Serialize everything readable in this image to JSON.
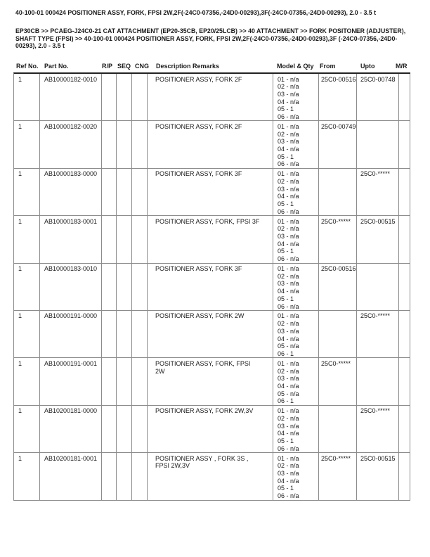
{
  "page": {
    "title": "40-100-01 000424 POSITIONER ASSY, FORK, FPSI 2W,2F(-24C0-07356,-24D0-00293),3F(-24C0-07356,-24D0-00293), 2.0 - 3.5 t",
    "breadcrumb": "EP30CB >> PCAEG-J24C0-21 CAT ATTACHMENT (EP20-35CB, EP20/25LCB) >> 40 ATTACHMENT >> FORK POSITONER (ADJUSTER), SHAFT TYPE (FPSI) >> 40-100-01 000424 POSITIONER ASSY, FORK, FPSI 2W,2F(-24C0-07356,-24D0-00293),3F (-24C0-07356,-24D0-00293), 2.0 - 3.5 t"
  },
  "colors": {
    "text": "#1a1a1a",
    "grid_line": "#8c8c8c",
    "header_rule": "#222222",
    "background": "#ffffff"
  },
  "table": {
    "headers": {
      "ref": "Ref No.",
      "part": "Part No.",
      "rp": "R/P",
      "seq": "SEQ",
      "cng": "CNG",
      "desc": "Description Remarks",
      "model": "Model & Qty",
      "from": "From",
      "upto": "Upto",
      "mr": "M/R"
    },
    "rows": [
      {
        "ref": "1",
        "part_no": "AB10000182-0010",
        "rp": "",
        "seq": "",
        "cng": "",
        "description": "POSITIONER ASSY, FORK 2F",
        "model_qty": "01 - n/a\n02 - n/a\n03 - n/a\n04 - n/a\n05 - 1\n06 - n/a",
        "from": "25C0-00516",
        "upto": "25C0-00748",
        "mr": ""
      },
      {
        "ref": "1",
        "part_no": "AB10000182-0020",
        "rp": "",
        "seq": "",
        "cng": "",
        "description": "POSITIONER ASSY, FORK 2F",
        "model_qty": "01 - n/a\n02 - n/a\n03 - n/a\n04 - n/a\n05 - 1\n06 - n/a",
        "from": "25C0-00749",
        "upto": "",
        "mr": ""
      },
      {
        "ref": "1",
        "part_no": "AB10000183-0000",
        "rp": "",
        "seq": "",
        "cng": "",
        "description": "POSITIONER ASSY, FORK 3F",
        "model_qty": "01 - n/a\n02 - n/a\n03 - n/a\n04 - n/a\n05 - 1\n06 - n/a",
        "from": "",
        "upto": "25C0-*****",
        "mr": ""
      },
      {
        "ref": "1",
        "part_no": "AB10000183-0001",
        "rp": "",
        "seq": "",
        "cng": "",
        "description": "POSITIONER ASSY, FORK, FPSI 3F",
        "model_qty": "01 - n/a\n02 - n/a\n03 - n/a\n04 - n/a\n05 - 1\n06 - n/a",
        "from": "25C0-*****",
        "upto": "25C0-00515",
        "mr": ""
      },
      {
        "ref": "1",
        "part_no": "AB10000183-0010",
        "rp": "",
        "seq": "",
        "cng": "",
        "description": "POSITIONER ASSY, FORK 3F",
        "model_qty": "01 - n/a\n02 - n/a\n03 - n/a\n04 - n/a\n05 - 1\n06 - n/a",
        "from": "25C0-00516",
        "upto": "",
        "mr": ""
      },
      {
        "ref": "1",
        "part_no": "AB10000191-0000",
        "rp": "",
        "seq": "",
        "cng": "",
        "description": "POSITIONER ASSY, FORK 2W",
        "model_qty": "01 - n/a\n02 - n/a\n03 - n/a\n04 - n/a\n05 - n/a\n06 - 1",
        "from": "",
        "upto": "25C0-*****",
        "mr": ""
      },
      {
        "ref": "1",
        "part_no": "AB10000191-0001",
        "rp": "",
        "seq": "",
        "cng": "",
        "description": "POSITIONER ASSY, FORK, FPSI\n2W",
        "model_qty": "01 - n/a\n02 - n/a\n03 - n/a\n04 - n/a\n05 - n/a\n06 - 1",
        "from": "25C0-*****",
        "upto": "",
        "mr": ""
      },
      {
        "ref": "1",
        "part_no": "AB10200181-0000",
        "rp": "",
        "seq": "",
        "cng": "",
        "description": "POSITIONER ASSY, FORK 2W,3V",
        "model_qty": "01 - n/a\n02 - n/a\n03 - n/a\n04 - n/a\n05 - 1\n06 - n/a",
        "from": "",
        "upto": "25C0-*****",
        "mr": ""
      },
      {
        "ref": "1",
        "part_no": "AB10200181-0001",
        "rp": "",
        "seq": "",
        "cng": "",
        "description": "POSITIONER ASSY , FORK 3S ,\nFPSI 2W,3V",
        "model_qty": "01 - n/a\n02 - n/a\n03 - n/a\n04 - n/a\n05 - 1\n06 - n/a",
        "from": "25C0-*****",
        "upto": "25C0-00515",
        "mr": ""
      }
    ]
  }
}
